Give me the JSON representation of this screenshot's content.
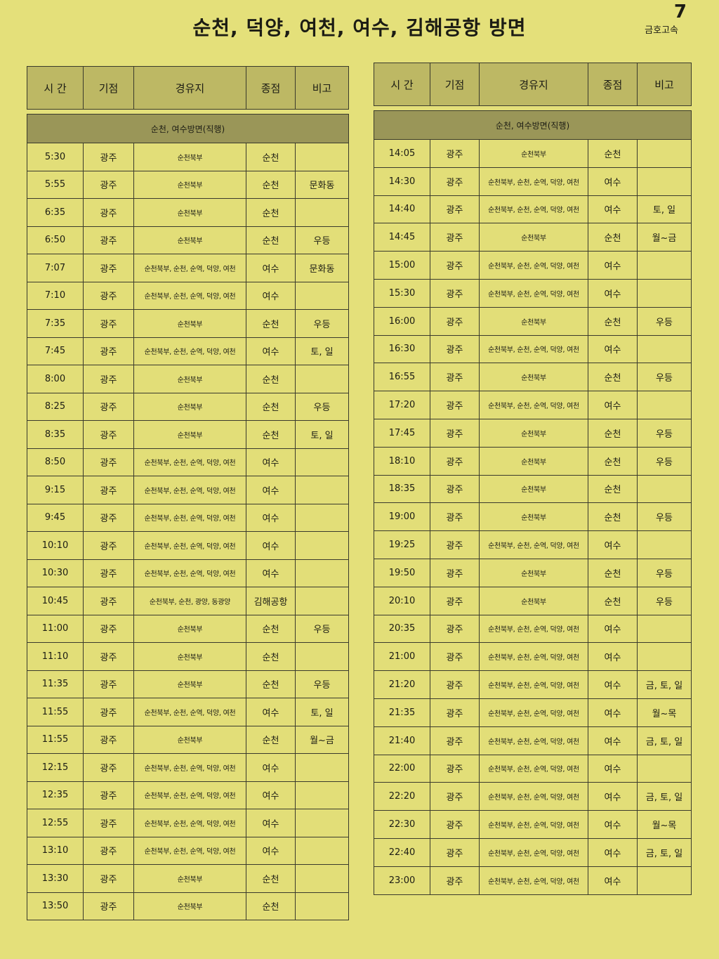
{
  "title": "순천, 덕양, 여천, 여수, 김해공항 방면",
  "company": "금호고속",
  "page_mark": "7",
  "headers": [
    "시 간",
    "기점",
    "경유지",
    "종점",
    "비고"
  ],
  "left": {
    "section": "순천, 여수방면(직행)",
    "rows": [
      [
        "5:30",
        "광주",
        "순천북부",
        "순천",
        ""
      ],
      [
        "5:55",
        "광주",
        "순천북부",
        "순천",
        "문화동"
      ],
      [
        "6:35",
        "광주",
        "순천북부",
        "순천",
        ""
      ],
      [
        "6:50",
        "광주",
        "순천북부",
        "순천",
        "우등"
      ],
      [
        "7:07",
        "광주",
        "순천북부, 순천, 순역, 덕양, 여천",
        "여수",
        "문화동"
      ],
      [
        "7:10",
        "광주",
        "순천북부, 순천, 순역, 덕양, 여천",
        "여수",
        ""
      ],
      [
        "7:35",
        "광주",
        "순천북부",
        "순천",
        "우등"
      ],
      [
        "7:45",
        "광주",
        "순천북부, 순천, 순역, 덕양, 여천",
        "여수",
        "토, 일"
      ],
      [
        "8:00",
        "광주",
        "순천북부",
        "순천",
        ""
      ],
      [
        "8:25",
        "광주",
        "순천북부",
        "순천",
        "우등"
      ],
      [
        "8:35",
        "광주",
        "순천북부",
        "순천",
        "토, 일"
      ],
      [
        "8:50",
        "광주",
        "순천북부, 순천, 순역, 덕양, 여천",
        "여수",
        ""
      ],
      [
        "9:15",
        "광주",
        "순천북부, 순천, 순역, 덕양, 여천",
        "여수",
        ""
      ],
      [
        "9:45",
        "광주",
        "순천북부, 순천, 순역, 덕양, 여천",
        "여수",
        ""
      ],
      [
        "10:10",
        "광주",
        "순천북부, 순천, 순역, 덕양, 여천",
        "여수",
        ""
      ],
      [
        "10:30",
        "광주",
        "순천북부, 순천, 순역, 덕양, 여천",
        "여수",
        ""
      ],
      [
        "10:45",
        "광주",
        "순천북부, 순천, 광양, 동광양",
        "김해공항",
        ""
      ],
      [
        "11:00",
        "광주",
        "순천북부",
        "순천",
        "우등"
      ],
      [
        "11:10",
        "광주",
        "순천북부",
        "순천",
        ""
      ],
      [
        "11:35",
        "광주",
        "순천북부",
        "순천",
        "우등"
      ],
      [
        "11:55",
        "광주",
        "순천북부, 순천, 순역, 덕양, 여천",
        "여수",
        "토, 일"
      ],
      [
        "11:55",
        "광주",
        "순천북부",
        "순천",
        "월~금"
      ],
      [
        "12:15",
        "광주",
        "순천북부, 순천, 순역, 덕양, 여천",
        "여수",
        ""
      ],
      [
        "12:35",
        "광주",
        "순천북부, 순천, 순역, 덕양, 여천",
        "여수",
        ""
      ],
      [
        "12:55",
        "광주",
        "순천북부, 순천, 순역, 덕양, 여천",
        "여수",
        ""
      ],
      [
        "13:10",
        "광주",
        "순천북부, 순천, 순역, 덕양, 여천",
        "여수",
        ""
      ],
      [
        "13:30",
        "광주",
        "순천북부",
        "순천",
        ""
      ],
      [
        "13:50",
        "광주",
        "순천북부",
        "순천",
        ""
      ]
    ]
  },
  "right": {
    "section": "순천, 여수방면(직행)",
    "rows": [
      [
        "14:05",
        "광주",
        "순천북부",
        "순천",
        ""
      ],
      [
        "14:30",
        "광주",
        "순천북부, 순천, 순역, 덕양, 여천",
        "여수",
        ""
      ],
      [
        "14:40",
        "광주",
        "순천북부, 순천, 순역, 덕양, 여천",
        "여수",
        "토, 일"
      ],
      [
        "14:45",
        "광주",
        "순천북부",
        "순천",
        "월~금"
      ],
      [
        "15:00",
        "광주",
        "순천북부, 순천, 순역, 덕양, 여천",
        "여수",
        ""
      ],
      [
        "15:30",
        "광주",
        "순천북부, 순천, 순역, 덕양, 여천",
        "여수",
        ""
      ],
      [
        "16:00",
        "광주",
        "순천북부",
        "순천",
        "우등"
      ],
      [
        "16:30",
        "광주",
        "순천북부, 순천, 순역, 덕양, 여천",
        "여수",
        ""
      ],
      [
        "16:55",
        "광주",
        "순천북부",
        "순천",
        "우등"
      ],
      [
        "17:20",
        "광주",
        "순천북부, 순천, 순역, 덕양, 여천",
        "여수",
        ""
      ],
      [
        "17:45",
        "광주",
        "순천북부",
        "순천",
        "우등"
      ],
      [
        "18:10",
        "광주",
        "순천북부",
        "순천",
        "우등"
      ],
      [
        "18:35",
        "광주",
        "순천북부",
        "순천",
        ""
      ],
      [
        "19:00",
        "광주",
        "순천북부",
        "순천",
        "우등"
      ],
      [
        "19:25",
        "광주",
        "순천북부, 순천, 순역, 덕양, 여천",
        "여수",
        ""
      ],
      [
        "19:50",
        "광주",
        "순천북부",
        "순천",
        "우등"
      ],
      [
        "20:10",
        "광주",
        "순천북부",
        "순천",
        "우등"
      ],
      [
        "20:35",
        "광주",
        "순천북부, 순천, 순역, 덕양, 여천",
        "여수",
        ""
      ],
      [
        "21:00",
        "광주",
        "순천북부, 순천, 순역, 덕양, 여천",
        "여수",
        ""
      ],
      [
        "21:20",
        "광주",
        "순천북부, 순천, 순역, 덕양, 여천",
        "여수",
        "금, 토, 일"
      ],
      [
        "21:35",
        "광주",
        "순천북부, 순천, 순역, 덕양, 여천",
        "여수",
        "월~목"
      ],
      [
        "21:40",
        "광주",
        "순천북부, 순천, 순역, 덕양, 여천",
        "여수",
        "금, 토, 일"
      ],
      [
        "22:00",
        "광주",
        "순천북부, 순천, 순역, 덕양, 여천",
        "여수",
        ""
      ],
      [
        "22:20",
        "광주",
        "순천북부, 순천, 순역, 덕양, 여천",
        "여수",
        "금, 토, 일"
      ],
      [
        "22:30",
        "광주",
        "순천북부, 순천, 순역, 덕양, 여천",
        "여수",
        "월~목"
      ],
      [
        "22:40",
        "광주",
        "순천북부, 순천, 순역, 덕양, 여천",
        "여수",
        "금, 토, 일"
      ],
      [
        "23:00",
        "광주",
        "순천북부, 순천, 순역, 덕양, 여천",
        "여수",
        ""
      ]
    ]
  }
}
